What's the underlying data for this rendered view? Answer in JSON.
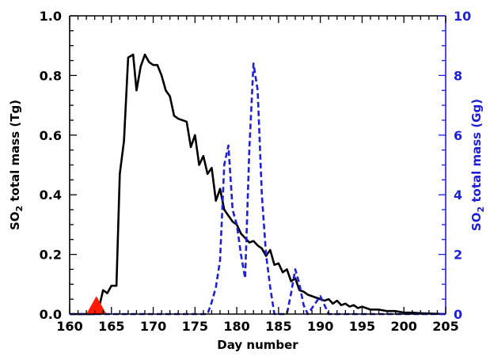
{
  "chart_data": {
    "type": "line",
    "title": "",
    "xlabel": "Day number",
    "ylabel_left": {
      "prefix": "SO",
      "subscript": "2",
      "suffix": " total mass (Tg)"
    },
    "ylabel_right": {
      "prefix": "SO",
      "subscript": "2",
      "suffix": " total mass (Gg)"
    },
    "xlim": [
      160,
      205
    ],
    "ylim_left": [
      0,
      1.0
    ],
    "ylim_right": [
      0,
      10
    ],
    "x_ticks": [
      160,
      165,
      170,
      175,
      180,
      185,
      190,
      195,
      200,
      205
    ],
    "y_ticks_left": [
      "0.0",
      "0.2",
      "0.4",
      "0.6",
      "0.8",
      "1.0"
    ],
    "y_ticks_right": [
      "0",
      "2",
      "4",
      "6",
      "8",
      "10"
    ],
    "grid": false,
    "colors": {
      "left_axis": "#000000",
      "right_axis": "#1f1fd6",
      "series_solid": "#000000",
      "series_dashed": "#1f1fd6",
      "marker": "#ff1a00"
    },
    "series": [
      {
        "axis": "left",
        "style": "solid",
        "color": "#000000",
        "points": [
          [
            160,
            0.0
          ],
          [
            161,
            0.0
          ],
          [
            162,
            0.0
          ],
          [
            163,
            0.0
          ],
          [
            163.5,
            0.02
          ],
          [
            164,
            0.08
          ],
          [
            164.5,
            0.07
          ],
          [
            165,
            0.095
          ],
          [
            165.6,
            0.095
          ],
          [
            166,
            0.47
          ],
          [
            166.5,
            0.58
          ],
          [
            167,
            0.86
          ],
          [
            167.6,
            0.87
          ],
          [
            168,
            0.75
          ],
          [
            168.5,
            0.83
          ],
          [
            169,
            0.87
          ],
          [
            169.5,
            0.845
          ],
          [
            170,
            0.835
          ],
          [
            170.5,
            0.835
          ],
          [
            171,
            0.8
          ],
          [
            171.5,
            0.75
          ],
          [
            172,
            0.73
          ],
          [
            172.5,
            0.665
          ],
          [
            173,
            0.655
          ],
          [
            173.5,
            0.65
          ],
          [
            174,
            0.645
          ],
          [
            174.5,
            0.56
          ],
          [
            175,
            0.6
          ],
          [
            175.5,
            0.5
          ],
          [
            176,
            0.53
          ],
          [
            176.5,
            0.47
          ],
          [
            177,
            0.49
          ],
          [
            177.5,
            0.38
          ],
          [
            178,
            0.42
          ],
          [
            178.5,
            0.35
          ],
          [
            179,
            0.33
          ],
          [
            179.5,
            0.31
          ],
          [
            180,
            0.3
          ],
          [
            180.5,
            0.27
          ],
          [
            181,
            0.255
          ],
          [
            181.5,
            0.24
          ],
          [
            182,
            0.245
          ],
          [
            182.5,
            0.23
          ],
          [
            183,
            0.22
          ],
          [
            183.5,
            0.195
          ],
          [
            184,
            0.215
          ],
          [
            184.5,
            0.165
          ],
          [
            185,
            0.17
          ],
          [
            185.5,
            0.14
          ],
          [
            186,
            0.15
          ],
          [
            186.5,
            0.11
          ],
          [
            187,
            0.12
          ],
          [
            187.5,
            0.08
          ],
          [
            188,
            0.075
          ],
          [
            188.5,
            0.065
          ],
          [
            189,
            0.06
          ],
          [
            189.5,
            0.055
          ],
          [
            190,
            0.05
          ],
          [
            190.5,
            0.045
          ],
          [
            191,
            0.05
          ],
          [
            191.5,
            0.035
          ],
          [
            192,
            0.045
          ],
          [
            192.5,
            0.03
          ],
          [
            193,
            0.035
          ],
          [
            193.5,
            0.025
          ],
          [
            194,
            0.03
          ],
          [
            194.5,
            0.02
          ],
          [
            195,
            0.025
          ],
          [
            196,
            0.015
          ],
          [
            197,
            0.015
          ],
          [
            198,
            0.01
          ],
          [
            199,
            0.01
          ],
          [
            200,
            0.005
          ],
          [
            201,
            0.005
          ],
          [
            202,
            0.003
          ],
          [
            203,
            0.002
          ],
          [
            204,
            0.001
          ],
          [
            205,
            0.0
          ]
        ]
      },
      {
        "axis": "right",
        "style": "dashed",
        "color": "#1f1fd6",
        "points": [
          [
            160,
            0.0
          ],
          [
            165,
            0.0
          ],
          [
            170,
            0.0
          ],
          [
            175,
            0.0
          ],
          [
            176.5,
            0.0
          ],
          [
            177,
            0.4
          ],
          [
            177.5,
            0.9
          ],
          [
            178,
            1.8
          ],
          [
            178.5,
            5.0
          ],
          [
            179,
            5.65
          ],
          [
            179.5,
            3.5
          ],
          [
            180,
            3.0
          ],
          [
            180.5,
            2.0
          ],
          [
            181,
            1.2
          ],
          [
            181.5,
            5.5
          ],
          [
            182,
            8.4
          ],
          [
            182.5,
            7.5
          ],
          [
            183,
            4.0
          ],
          [
            183.5,
            2.0
          ],
          [
            184,
            0.9
          ],
          [
            184.5,
            0.0
          ],
          [
            185,
            0.0
          ],
          [
            186,
            0.0
          ],
          [
            186.5,
            0.7
          ],
          [
            187,
            1.5
          ],
          [
            187.5,
            1.0
          ],
          [
            188,
            0.3
          ],
          [
            188.5,
            0.0
          ],
          [
            189,
            0.2
          ],
          [
            189.5,
            0.4
          ],
          [
            190,
            0.6
          ],
          [
            190.5,
            0.3
          ],
          [
            191,
            0.0
          ],
          [
            192,
            0.0
          ],
          [
            205,
            0.0
          ]
        ]
      }
    ],
    "markers": [
      {
        "shape": "triangle",
        "color": "#ff1a00",
        "x": 163.2,
        "y_left": 0.0,
        "height_left": 0.06,
        "half_width_x": 1.2
      }
    ]
  }
}
